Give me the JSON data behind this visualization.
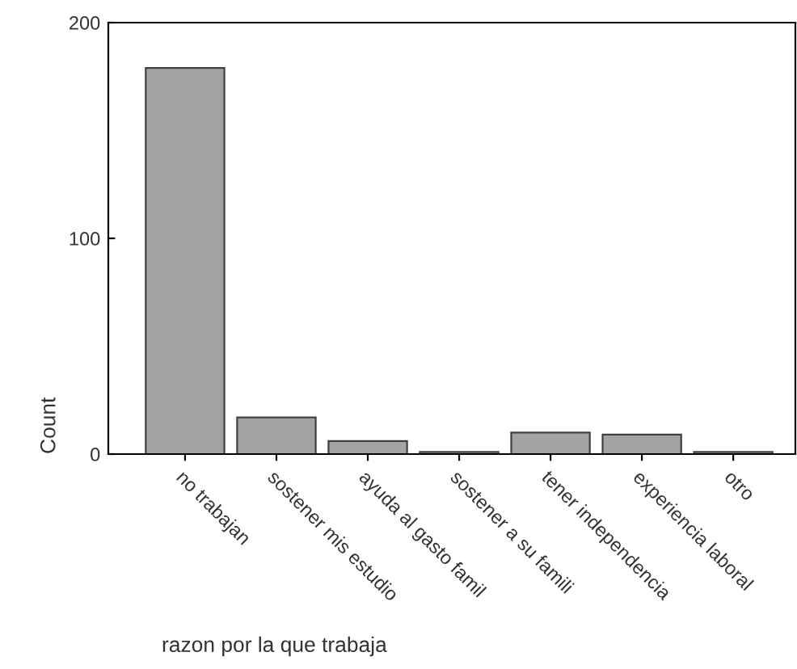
{
  "chart_data": {
    "type": "bar",
    "xlabel": "razon por la que trabaja",
    "ylabel": "Count",
    "categories": [
      "no trabajan",
      "sostener mis estudio",
      "ayuda al gasto famil",
      "sostener a su famili",
      "tener independencia",
      "experiencia laboral",
      "otro"
    ],
    "values": [
      179,
      17,
      6,
      1,
      10,
      9,
      1
    ],
    "color": "#a3a3a3",
    "ylim": [
      0,
      200
    ],
    "yticks": [
      0,
      100,
      200
    ],
    "grid": false
  }
}
